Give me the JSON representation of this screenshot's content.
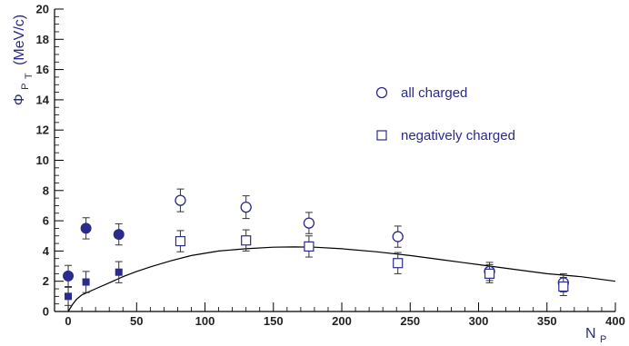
{
  "chart_data": {
    "type": "scatter",
    "xlim": [
      -10,
      400
    ],
    "ylim": [
      0,
      20
    ],
    "x_ticks": [
      0,
      50,
      100,
      150,
      200,
      250,
      300,
      350,
      400
    ],
    "y_ticks": [
      0,
      2,
      4,
      6,
      8,
      10,
      12,
      14,
      16,
      18,
      20
    ],
    "xlabel": {
      "main": "N",
      "sub": "P"
    },
    "ylabel": {
      "prefix": "Φ",
      "sub1": "P",
      "sub2": "T",
      "suffix": "(MeV/c)"
    },
    "grid": false,
    "legend_position": "right-center",
    "colors": {
      "marker": "#2b2b8c",
      "axis": "#000000",
      "curve": "#000000"
    },
    "series": [
      {
        "name": "all charged",
        "marker": "open-circle",
        "points": [
          {
            "x": 82,
            "y": 7.35,
            "err": 0.75
          },
          {
            "x": 130,
            "y": 6.9,
            "err": 0.75
          },
          {
            "x": 176,
            "y": 5.85,
            "err": 0.7
          },
          {
            "x": 241,
            "y": 4.95,
            "err": 0.7
          },
          {
            "x": 308,
            "y": 2.65,
            "err": 0.6
          },
          {
            "x": 362,
            "y": 1.9,
            "err": 0.6
          }
        ]
      },
      {
        "name": "negatively charged",
        "marker": "open-square",
        "points": [
          {
            "x": 82,
            "y": 4.65,
            "err": 0.7
          },
          {
            "x": 130,
            "y": 4.7,
            "err": 0.7
          },
          {
            "x": 176,
            "y": 4.3,
            "err": 0.7
          },
          {
            "x": 241,
            "y": 3.2,
            "err": 0.7
          },
          {
            "x": 308,
            "y": 2.5,
            "err": 0.6
          },
          {
            "x": 362,
            "y": 1.65,
            "err": 0.6
          }
        ]
      },
      {
        "marker": "filled-circle",
        "points": [
          {
            "x": 0,
            "y": 2.35,
            "err": 0.7
          },
          {
            "x": 13,
            "y": 5.5,
            "err": 0.7
          },
          {
            "x": 37,
            "y": 5.1,
            "err": 0.7
          }
        ]
      },
      {
        "marker": "filled-square",
        "points": [
          {
            "x": 0,
            "y": 1.0,
            "err": 0.6
          },
          {
            "x": 13,
            "y": 1.95,
            "err": 0.7
          },
          {
            "x": 37,
            "y": 2.6,
            "err": 0.7
          }
        ]
      }
    ],
    "curve": {
      "x": [
        0,
        3,
        6,
        10,
        20,
        30,
        40,
        50,
        60,
        75,
        90,
        110,
        130,
        150,
        165,
        180,
        200,
        225,
        250,
        275,
        300,
        325,
        350,
        375,
        400
      ],
      "y": [
        0.0,
        0.45,
        0.8,
        1.1,
        1.5,
        1.9,
        2.3,
        2.65,
        2.95,
        3.35,
        3.7,
        4.0,
        4.15,
        4.25,
        4.27,
        4.25,
        4.15,
        3.95,
        3.7,
        3.4,
        3.1,
        2.8,
        2.5,
        2.3,
        2.0
      ]
    }
  }
}
